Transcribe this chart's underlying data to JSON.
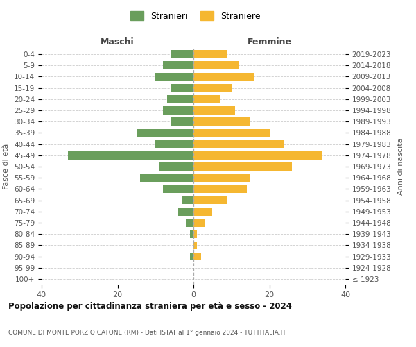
{
  "age_groups": [
    "100+",
    "95-99",
    "90-94",
    "85-89",
    "80-84",
    "75-79",
    "70-74",
    "65-69",
    "60-64",
    "55-59",
    "50-54",
    "45-49",
    "40-44",
    "35-39",
    "30-34",
    "25-29",
    "20-24",
    "15-19",
    "10-14",
    "5-9",
    "0-4"
  ],
  "birth_years": [
    "≤ 1923",
    "1924-1928",
    "1929-1933",
    "1934-1938",
    "1939-1943",
    "1944-1948",
    "1949-1953",
    "1954-1958",
    "1959-1963",
    "1964-1968",
    "1969-1973",
    "1974-1978",
    "1979-1983",
    "1984-1988",
    "1989-1993",
    "1994-1998",
    "1999-2003",
    "2004-2008",
    "2009-2013",
    "2014-2018",
    "2019-2023"
  ],
  "maschi": [
    0,
    0,
    1,
    0,
    1,
    2,
    4,
    3,
    8,
    14,
    9,
    33,
    10,
    15,
    6,
    8,
    7,
    6,
    10,
    8,
    6
  ],
  "femmine": [
    0,
    0,
    2,
    1,
    1,
    3,
    5,
    9,
    14,
    15,
    26,
    34,
    24,
    20,
    15,
    11,
    7,
    10,
    16,
    12,
    9
  ],
  "color_maschi": "#6a9e5c",
  "color_femmine": "#f5b731",
  "title": "Popolazione per cittadinanza straniera per età e sesso - 2024",
  "subtitle": "COMUNE DI MONTE PORZIO CATONE (RM) - Dati ISTAT al 1° gennaio 2024 - TUTTITALIA.IT",
  "xlabel_left": "Maschi",
  "xlabel_right": "Femmine",
  "ylabel_left": "Fasce di età",
  "ylabel_right": "Anni di nascita",
  "legend_stranieri": "Stranieri",
  "legend_straniere": "Straniere",
  "xlim": 40,
  "background_color": "#ffffff",
  "grid_color": "#cccccc"
}
